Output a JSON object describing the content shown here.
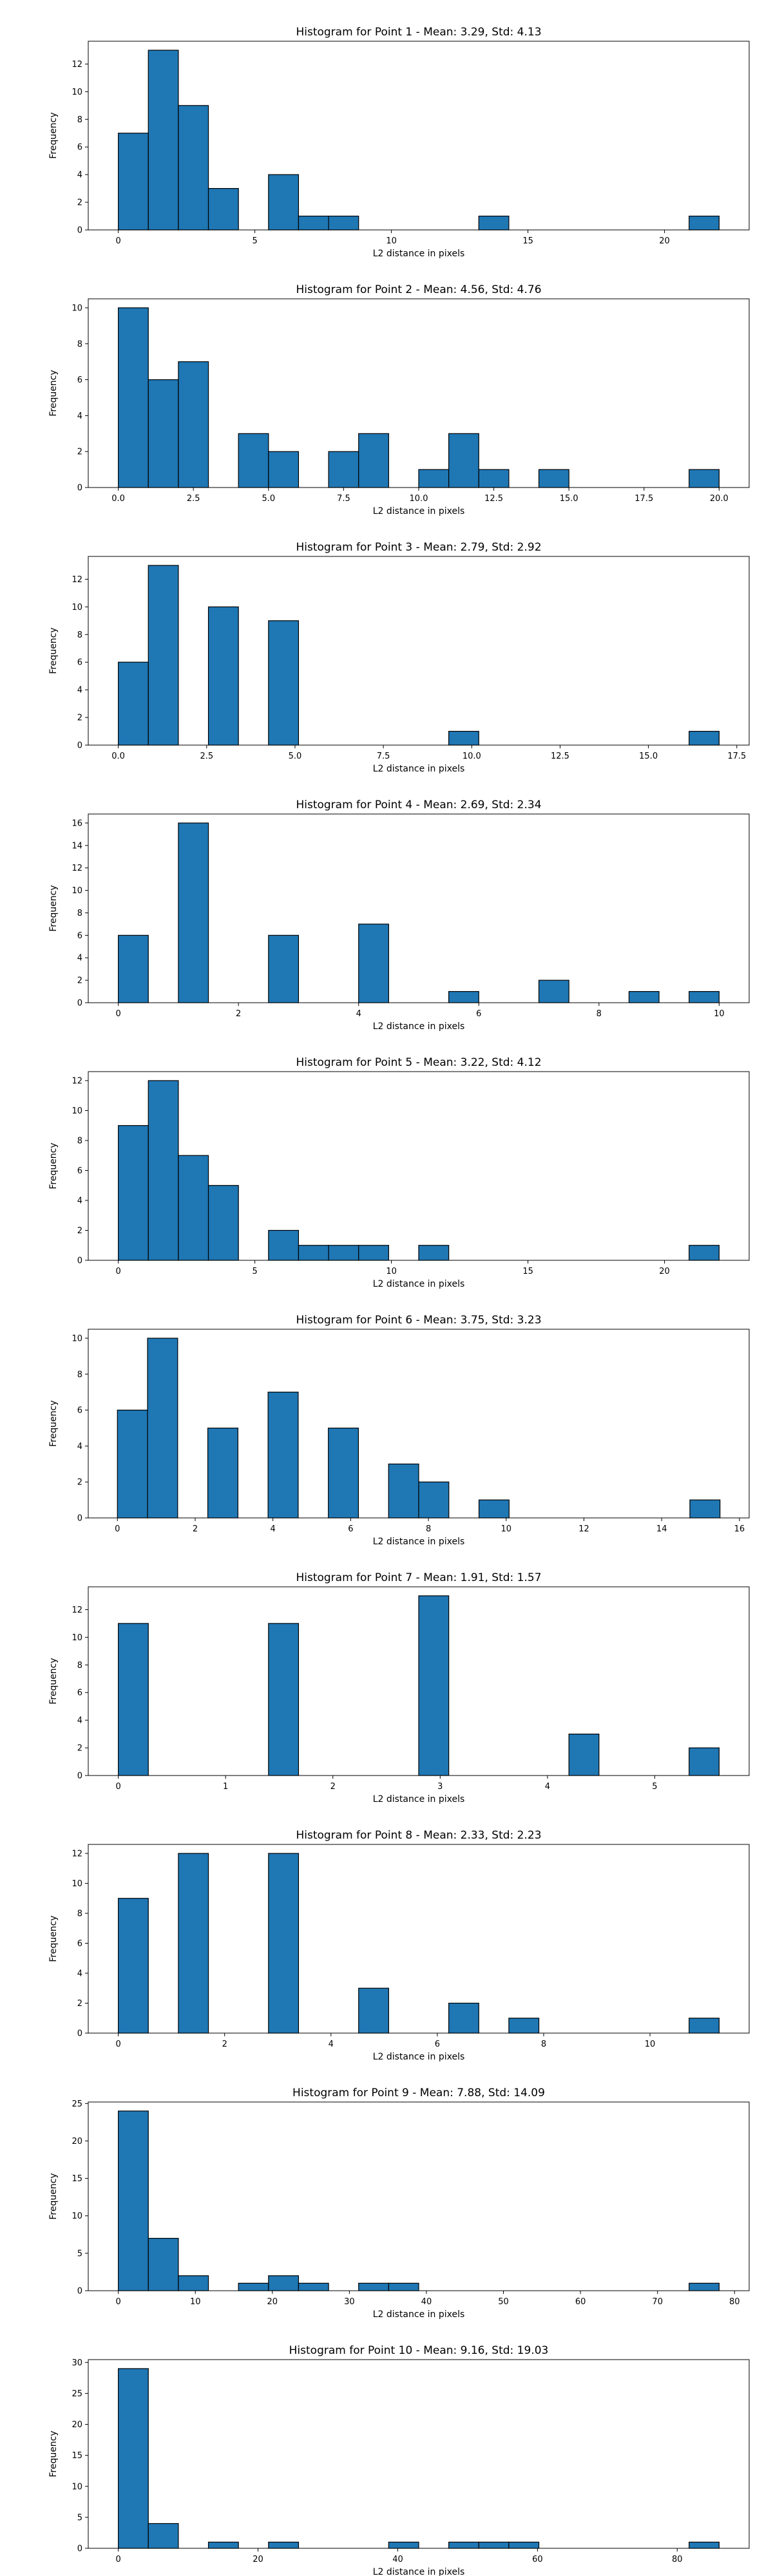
{
  "chart_data": [
    {
      "type": "bar",
      "title": "Histogram for Point 1 - Mean: 3.29, Std: 4.13",
      "xlabel": "L2 distance in pixels",
      "ylabel": "Frequency",
      "xlim": [
        -1.1,
        23.1
      ],
      "ylim": [
        0,
        13.65
      ],
      "xticks": [
        0,
        5,
        10,
        15,
        20
      ],
      "xtick_labels": [
        "0",
        "5",
        "10",
        "15",
        "20"
      ],
      "yticks": [
        0,
        2,
        4,
        6,
        8,
        10,
        12
      ],
      "bin_edges": [
        0.0,
        1.1,
        2.2,
        3.3,
        4.4,
        5.5,
        6.6,
        7.7,
        8.8,
        9.9,
        11.0,
        12.1,
        13.2,
        14.3,
        15.4,
        16.5,
        17.6,
        18.7,
        19.8,
        20.9,
        22.0
      ],
      "values": [
        7,
        13,
        9,
        3,
        0,
        4,
        1,
        1,
        0,
        0,
        0,
        0,
        1,
        0,
        0,
        0,
        0,
        0,
        0,
        1
      ]
    },
    {
      "type": "bar",
      "title": "Histogram for Point 2 - Mean: 4.56, Std: 4.76",
      "xlabel": "L2 distance in pixels",
      "ylabel": "Frequency",
      "xlim": [
        -1.0,
        21.0
      ],
      "ylim": [
        0,
        10.5
      ],
      "xticks": [
        0,
        2.5,
        5,
        7.5,
        10,
        12.5,
        15,
        17.5,
        20
      ],
      "xtick_labels": [
        "0.0",
        "2.5",
        "5.0",
        "7.5",
        "10.0",
        "12.5",
        "15.0",
        "17.5",
        "20.0"
      ],
      "yticks": [
        0,
        2,
        4,
        6,
        8,
        10
      ],
      "bin_edges": [
        0.0,
        1.0,
        2.0,
        3.0,
        4.0,
        5.0,
        6.0,
        7.0,
        8.0,
        9.0,
        10.0,
        11.0,
        12.0,
        13.0,
        14.0,
        15.0,
        16.0,
        17.0,
        18.0,
        19.0,
        20.0
      ],
      "values": [
        10,
        6,
        7,
        0,
        3,
        2,
        0,
        2,
        3,
        0,
        1,
        3,
        1,
        0,
        1,
        0,
        0,
        0,
        0,
        1
      ]
    },
    {
      "type": "bar",
      "title": "Histogram for Point 3 - Mean: 2.79, Std: 2.92",
      "xlabel": "L2 distance in pixels",
      "ylabel": "Frequency",
      "xlim": [
        -0.85,
        17.85
      ],
      "ylim": [
        0,
        13.65
      ],
      "xticks": [
        0,
        2.5,
        5,
        7.5,
        10,
        12.5,
        15,
        17.5
      ],
      "xtick_labels": [
        "0.0",
        "2.5",
        "5.0",
        "7.5",
        "10.0",
        "12.5",
        "15.0",
        "17.5"
      ],
      "yticks": [
        0,
        2,
        4,
        6,
        8,
        10,
        12
      ],
      "bin_edges": [
        0.0,
        0.85,
        1.7,
        2.55,
        3.4,
        4.25,
        5.1,
        5.95,
        6.8,
        7.65,
        8.5,
        9.35,
        10.2,
        11.05,
        11.9,
        12.75,
        13.6,
        14.45,
        15.3,
        16.15,
        17.0
      ],
      "values": [
        6,
        13,
        0,
        10,
        0,
        9,
        0,
        0,
        0,
        0,
        0,
        1,
        0,
        0,
        0,
        0,
        0,
        0,
        0,
        1
      ]
    },
    {
      "type": "bar",
      "title": "Histogram for Point 4 - Mean: 2.69, Std: 2.34",
      "xlabel": "L2 distance in pixels",
      "ylabel": "Frequency",
      "xlim": [
        -0.5,
        10.5
      ],
      "ylim": [
        0,
        16.8
      ],
      "xticks": [
        0,
        2,
        4,
        6,
        8,
        10
      ],
      "xtick_labels": [
        "0",
        "2",
        "4",
        "6",
        "8",
        "10"
      ],
      "yticks": [
        0,
        2,
        4,
        6,
        8,
        10,
        12,
        14,
        16
      ],
      "bin_edges": [
        0.0,
        0.5,
        1.0,
        1.5,
        2.0,
        2.5,
        3.0,
        3.5,
        4.0,
        4.5,
        5.0,
        5.5,
        6.0,
        6.5,
        7.0,
        7.5,
        8.0,
        8.5,
        9.0,
        9.5,
        10.0
      ],
      "values": [
        6,
        0,
        16,
        0,
        0,
        6,
        0,
        0,
        7,
        0,
        0,
        1,
        0,
        0,
        2,
        0,
        0,
        1,
        0,
        1
      ]
    },
    {
      "type": "bar",
      "title": "Histogram for Point 5 - Mean: 3.22, Std: 4.12",
      "xlabel": "L2 distance in pixels",
      "ylabel": "Frequency",
      "xlim": [
        -1.1,
        23.1
      ],
      "ylim": [
        0,
        12.6
      ],
      "xticks": [
        0,
        5,
        10,
        15,
        20
      ],
      "xtick_labels": [
        "0",
        "5",
        "10",
        "15",
        "20"
      ],
      "yticks": [
        0,
        2,
        4,
        6,
        8,
        10,
        12
      ],
      "bin_edges": [
        0.0,
        1.1,
        2.2,
        3.3,
        4.4,
        5.5,
        6.6,
        7.7,
        8.8,
        9.9,
        11.0,
        12.1,
        13.2,
        14.3,
        15.4,
        16.5,
        17.6,
        18.7,
        19.8,
        20.9,
        22.0
      ],
      "values": [
        9,
        12,
        7,
        5,
        0,
        2,
        1,
        1,
        1,
        0,
        1,
        0,
        0,
        0,
        0,
        0,
        0,
        0,
        0,
        1
      ]
    },
    {
      "type": "bar",
      "title": "Histogram for Point 6 - Mean: 3.75, Std: 3.23",
      "xlabel": "L2 distance in pixels",
      "ylabel": "Frequency",
      "xlim": [
        -0.75,
        16.25
      ],
      "ylim": [
        0,
        10.5
      ],
      "xticks": [
        0,
        2,
        4,
        6,
        8,
        10,
        12,
        14,
        16
      ],
      "xtick_labels": [
        "0",
        "2",
        "4",
        "6",
        "8",
        "10",
        "12",
        "14",
        "16"
      ],
      "yticks": [
        0,
        2,
        4,
        6,
        8,
        10
      ],
      "bin_edges": [
        0.0,
        0.775,
        1.55,
        2.325,
        3.1,
        3.875,
        4.65,
        5.425,
        6.2,
        6.975,
        7.75,
        8.525,
        9.3,
        10.075,
        10.85,
        11.625,
        12.4,
        13.175,
        13.95,
        14.725,
        15.5
      ],
      "values": [
        6,
        10,
        0,
        5,
        0,
        7,
        0,
        5,
        0,
        3,
        2,
        0,
        1,
        0,
        0,
        0,
        0,
        0,
        0,
        1
      ]
    },
    {
      "type": "bar",
      "title": "Histogram for Point 7 - Mean: 1.91, Std: 1.57",
      "xlabel": "L2 distance in pixels",
      "ylabel": "Frequency",
      "xlim": [
        -0.28,
        5.88
      ],
      "ylim": [
        0,
        13.65
      ],
      "xticks": [
        0,
        1,
        2,
        3,
        4,
        5
      ],
      "xtick_labels": [
        "0",
        "1",
        "2",
        "3",
        "4",
        "5"
      ],
      "yticks": [
        0,
        2,
        4,
        6,
        8,
        10,
        12
      ],
      "bin_edges": [
        0.0,
        0.28,
        0.56,
        0.84,
        1.12,
        1.4,
        1.68,
        1.96,
        2.24,
        2.52,
        2.8,
        3.08,
        3.36,
        3.64,
        3.92,
        4.2,
        4.48,
        4.76,
        5.04,
        5.32,
        5.6
      ],
      "values": [
        11,
        0,
        0,
        0,
        0,
        11,
        0,
        0,
        0,
        0,
        13,
        0,
        0,
        0,
        0,
        3,
        0,
        0,
        0,
        2
      ]
    },
    {
      "type": "bar",
      "title": "Histogram for Point 8 - Mean: 2.33, Std: 2.23",
      "xlabel": "L2 distance in pixels",
      "ylabel": "Frequency",
      "xlim": [
        -0.565,
        11.865
      ],
      "ylim": [
        0,
        12.6
      ],
      "xticks": [
        0,
        2,
        4,
        6,
        8,
        10
      ],
      "xtick_labels": [
        "0",
        "2",
        "4",
        "6",
        "8",
        "10"
      ],
      "yticks": [
        0,
        2,
        4,
        6,
        8,
        10,
        12
      ],
      "bin_edges": [
        0.0,
        0.565,
        1.13,
        1.695,
        2.26,
        2.825,
        3.39,
        3.955,
        4.52,
        5.085,
        5.65,
        6.215,
        6.78,
        7.345,
        7.91,
        8.475,
        9.04,
        9.605,
        10.17,
        10.735,
        11.3
      ],
      "values": [
        9,
        0,
        12,
        0,
        0,
        12,
        0,
        0,
        3,
        0,
        0,
        2,
        0,
        1,
        0,
        0,
        0,
        0,
        0,
        1
      ]
    },
    {
      "type": "bar",
      "title": "Histogram for Point 9 - Mean: 7.88, Std: 14.09",
      "xlabel": "L2 distance in pixels",
      "ylabel": "Frequency",
      "xlim": [
        -3.9,
        81.9
      ],
      "ylim": [
        0,
        25.2
      ],
      "xticks": [
        0,
        10,
        20,
        30,
        40,
        50,
        60,
        70,
        80
      ],
      "xtick_labels": [
        "0",
        "10",
        "20",
        "30",
        "40",
        "50",
        "60",
        "70",
        "80"
      ],
      "yticks": [
        0,
        5,
        10,
        15,
        20,
        25
      ],
      "bin_edges": [
        0.0,
        3.9,
        7.8,
        11.7,
        15.6,
        19.5,
        23.4,
        27.3,
        31.2,
        35.1,
        39.0,
        42.9,
        46.8,
        50.7,
        54.6,
        58.5,
        62.4,
        66.3,
        70.2,
        74.1,
        78.0
      ],
      "values": [
        24,
        7,
        2,
        0,
        1,
        2,
        1,
        0,
        1,
        1,
        0,
        0,
        0,
        0,
        0,
        0,
        0,
        0,
        0,
        1
      ]
    },
    {
      "type": "bar",
      "title": "Histogram for Point 10 - Mean: 9.16, Std: 19.03",
      "xlabel": "L2 distance in pixels",
      "ylabel": "Frequency",
      "xlim": [
        -4.3,
        90.3
      ],
      "ylim": [
        0,
        30.45
      ],
      "xticks": [
        0,
        20,
        40,
        60,
        80
      ],
      "xtick_labels": [
        "0",
        "20",
        "40",
        "60",
        "80"
      ],
      "yticks": [
        0,
        5,
        10,
        15,
        20,
        25,
        30
      ],
      "bin_edges": [
        0.0,
        4.3,
        8.6,
        12.9,
        17.2,
        21.5,
        25.8,
        30.1,
        34.4,
        38.7,
        43.0,
        47.3,
        51.6,
        55.9,
        60.2,
        64.5,
        68.8,
        73.1,
        77.4,
        81.7,
        86.0
      ],
      "values": [
        29,
        4,
        0,
        1,
        0,
        1,
        0,
        0,
        0,
        1,
        0,
        1,
        1,
        1,
        0,
        0,
        0,
        0,
        0,
        1
      ]
    }
  ],
  "colors": {
    "bar_fill": "#1f77b4",
    "bar_edge": "#000000",
    "axes": "#000000",
    "background": "#ffffff"
  }
}
